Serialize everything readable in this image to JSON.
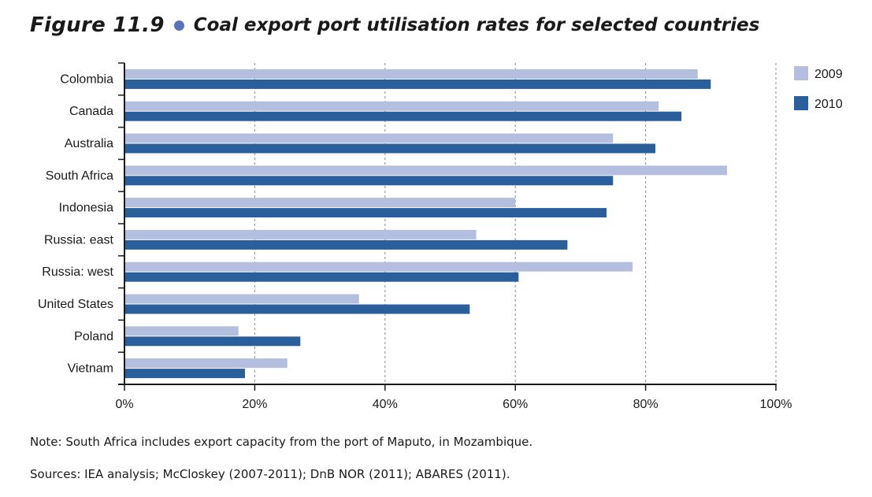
{
  "figure": {
    "label": "Figure 11.9",
    "title": "Coal export port utilisation rates for selected countries",
    "dot_color": "#5a72b8"
  },
  "chart_data": {
    "type": "bar",
    "orientation": "horizontal",
    "categories": [
      "Colombia",
      "Canada",
      "Australia",
      "South Africa",
      "Indonesia",
      "Russia: east",
      "Russia: west",
      "United States",
      "Poland",
      "Vietnam"
    ],
    "series": [
      {
        "name": "2009",
        "color": "#b4bfdf",
        "values": [
          88,
          82,
          75,
          92.5,
          60,
          54,
          78,
          36,
          17.5,
          25
        ]
      },
      {
        "name": "2010",
        "color": "#2b5f9c",
        "values": [
          90,
          85.5,
          81.5,
          75,
          74,
          68,
          60.5,
          53,
          27,
          18.5
        ]
      }
    ],
    "x_ticks": [
      "0%",
      "20%",
      "40%",
      "60%",
      "80%",
      "100%"
    ],
    "xlim": [
      0,
      100
    ],
    "grid": "vertical dashed",
    "legend_position": "right"
  },
  "notes": {
    "note": "Note: South Africa includes export capacity from the port of Maputo, in Mozambique.",
    "sources": "Sources: IEA analysis; McCloskey (2007-2011); DnB NOR (2011); ABARES (2011)."
  }
}
